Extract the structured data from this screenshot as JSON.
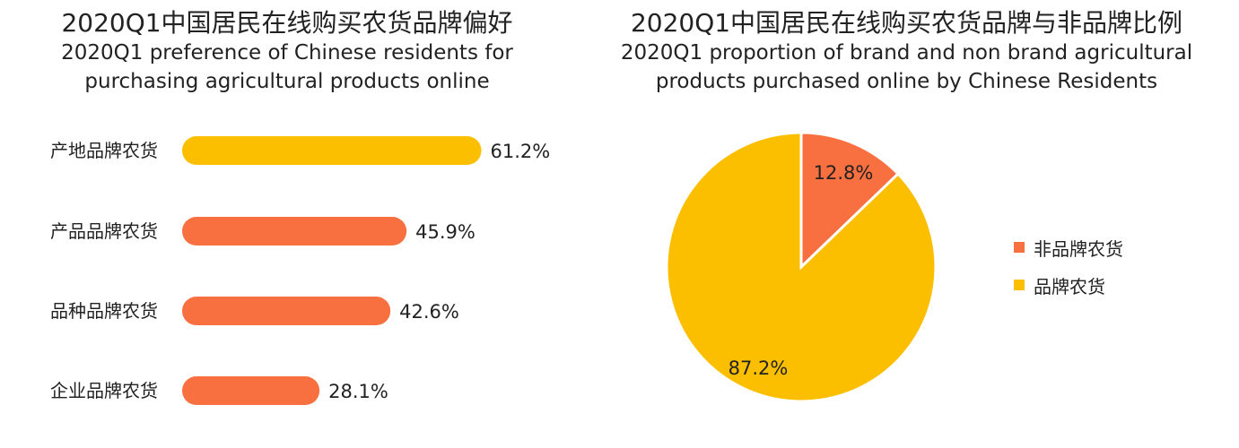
{
  "chart_data": [
    {
      "type": "bar",
      "orientation": "horizontal",
      "title": "2020Q1中国居民在线购买农货品牌偏好",
      "subtitle": "2020Q1 preference of Chinese residents for purchasing agricultural products online",
      "categories": [
        "产地品牌农货",
        "产品品牌农货",
        "品种品牌农货",
        "企业品牌农货"
      ],
      "values": [
        61.2,
        45.9,
        42.6,
        28.1
      ],
      "value_labels": [
        "61.2%",
        "45.9%",
        "42.6%",
        "28.1%"
      ],
      "colors": [
        "#FCBF00",
        "#F97040",
        "#F97040",
        "#F97040"
      ],
      "xlim": [
        0,
        100
      ],
      "xlabel": "",
      "ylabel": "",
      "grid": false
    },
    {
      "type": "pie",
      "title": "2020Q1中国居民在线购买农货品牌与非品牌比例",
      "subtitle": "2020Q1 proportion of brand and non brand agricultural products purchased online by Chinese Residents",
      "categories": [
        "非品牌农货",
        "品牌农货"
      ],
      "values": [
        12.8,
        87.2
      ],
      "value_labels": [
        "12.8%",
        "87.2%"
      ],
      "colors": [
        "#F97040",
        "#FCBF00"
      ],
      "legend_position": "right"
    }
  ]
}
